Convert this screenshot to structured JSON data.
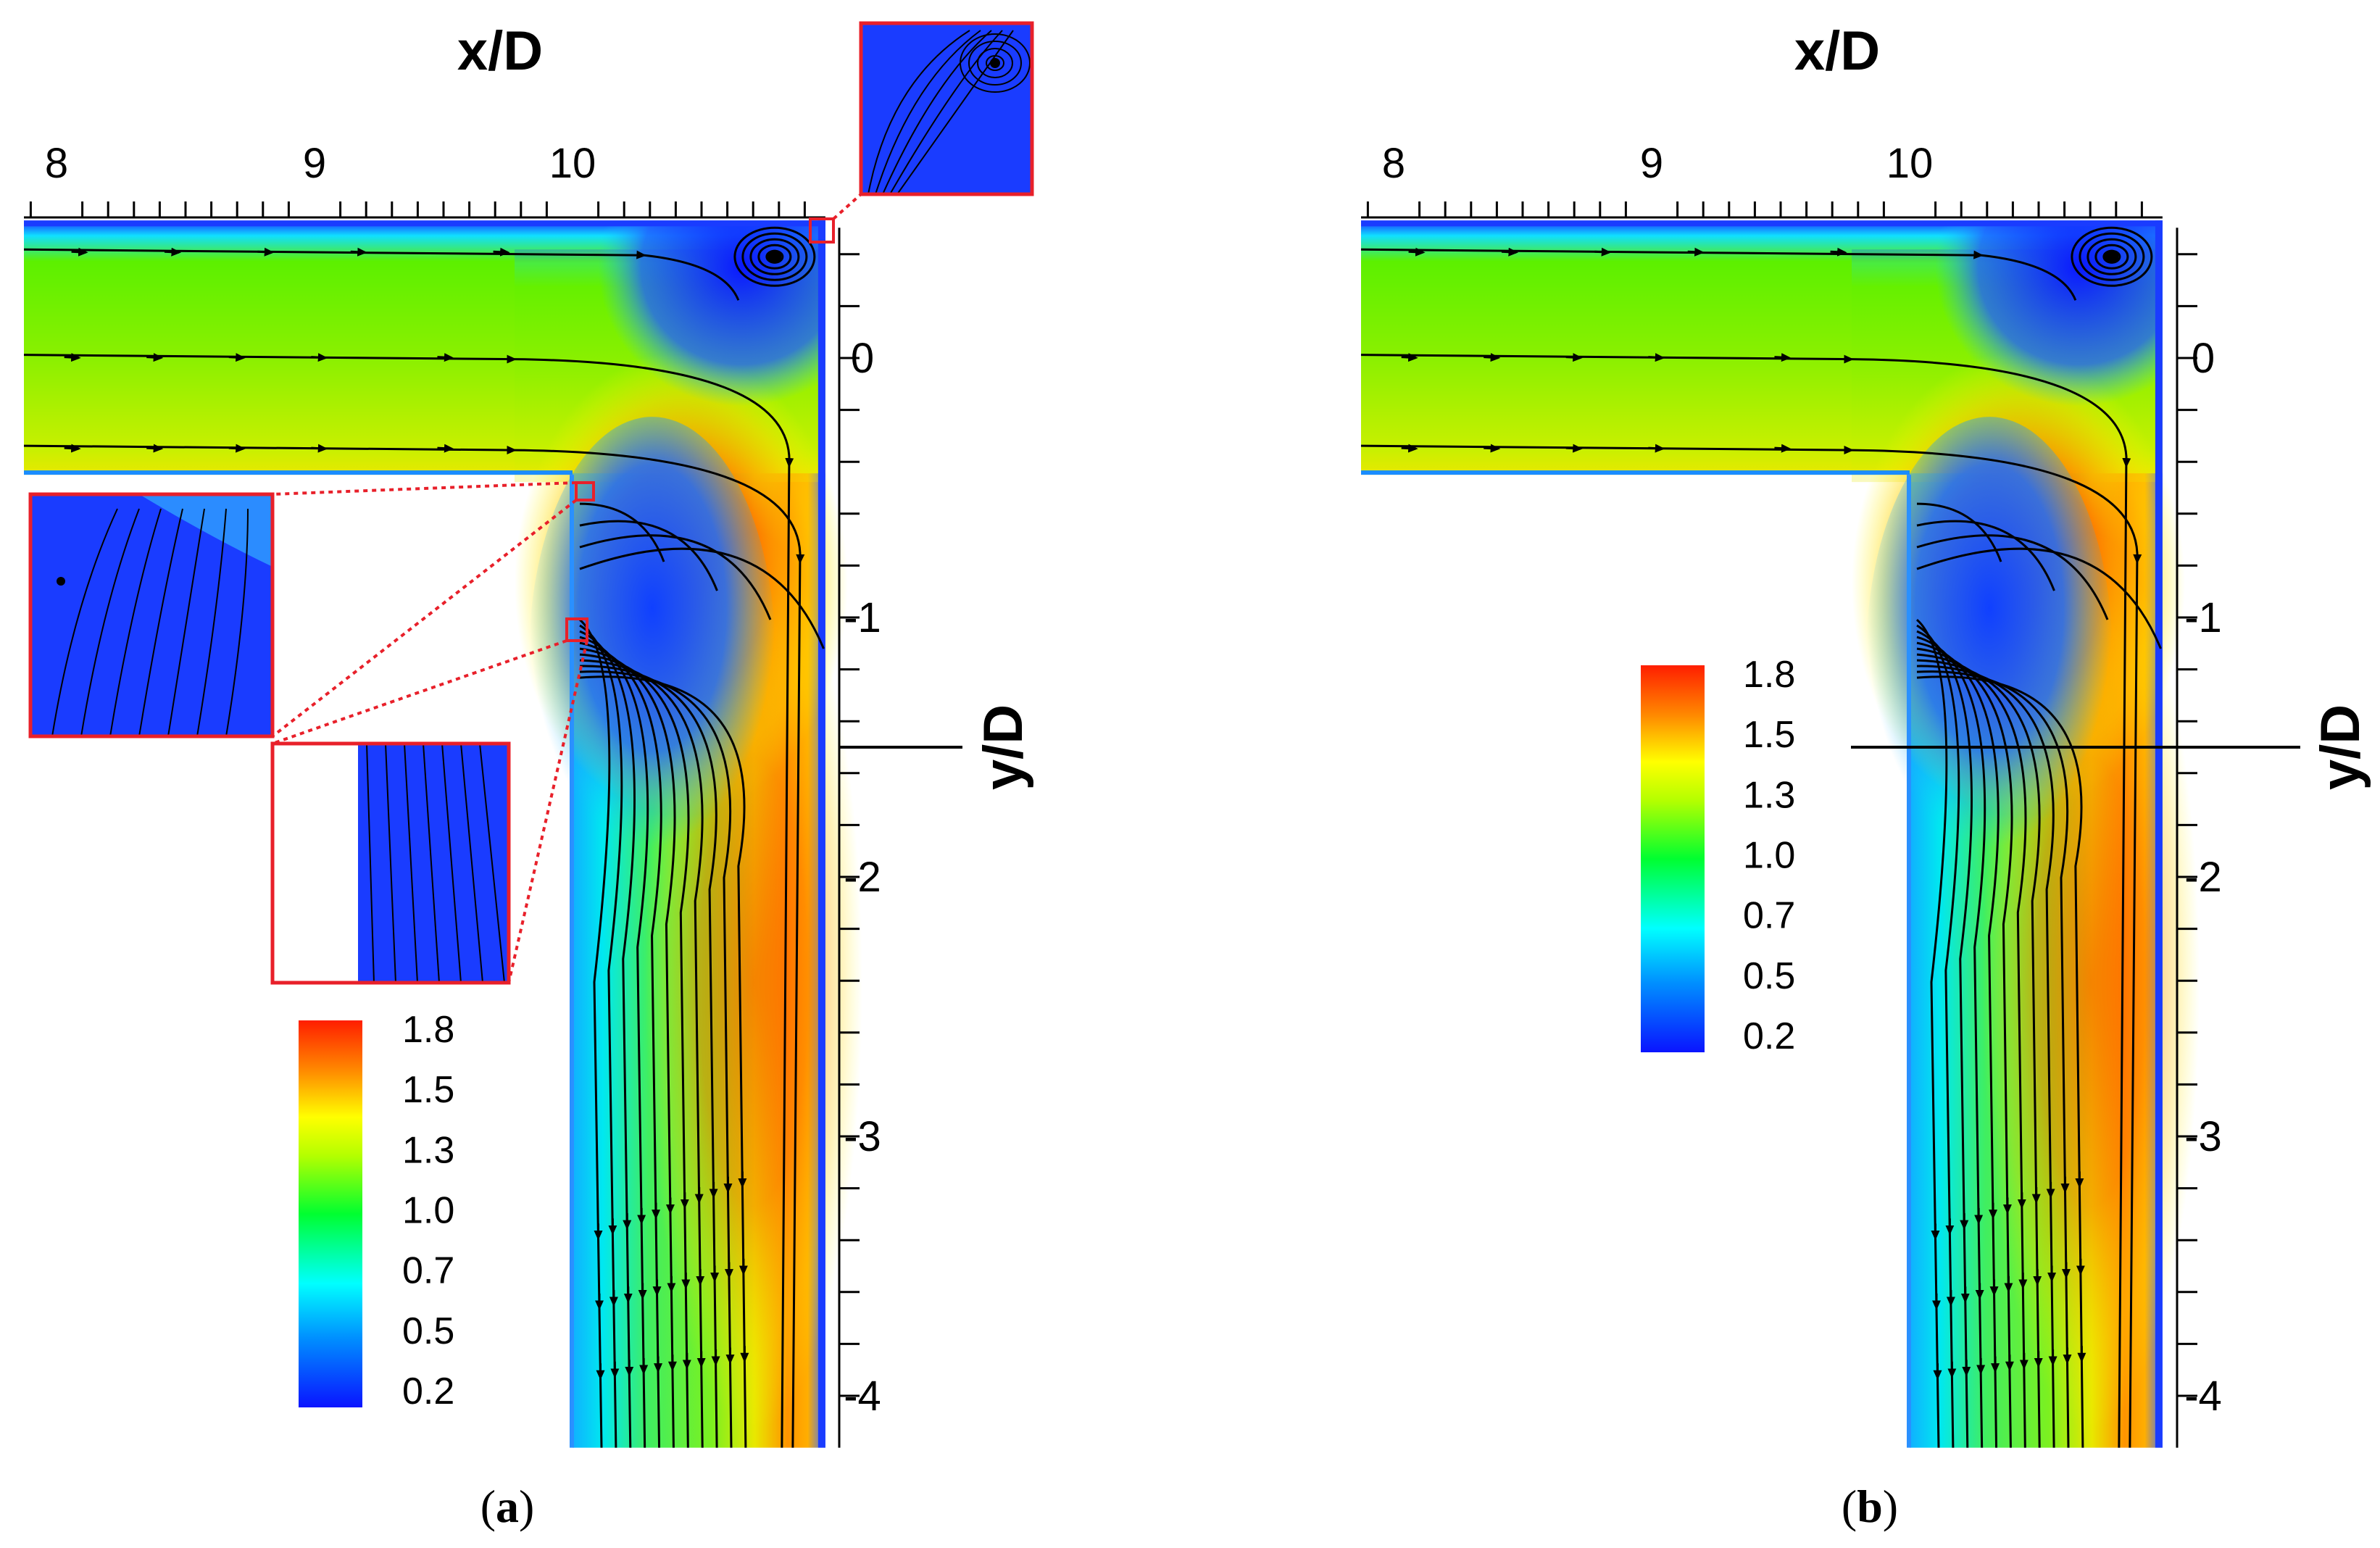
{
  "chart_data": [
    {
      "type": "heatmap",
      "panel_label": "(a)",
      "panel_letter": "a",
      "xlabel": "x/D",
      "ylabel": "y/D",
      "x_ticks": [
        "8",
        "9",
        "10"
      ],
      "y_ticks": [
        "0",
        "-1",
        "-2",
        "-3",
        "-4"
      ],
      "xlim": [
        7.87,
        11.0
      ],
      "ylim": [
        -4.2,
        0.55
      ],
      "colorbar": {
        "labels": [
          "1.8",
          "1.5",
          "1.3",
          "1.0",
          "0.7",
          "0.5",
          "0.2"
        ],
        "range": [
          0.2,
          1.8
        ]
      },
      "geometry": {
        "inner_corner_x": 10.0,
        "inner_corner_y": -0.45,
        "outer_wall_x": 10.98,
        "top_wall_y": 0.53
      },
      "insets": 3,
      "colors": {
        "inset_frame": "#e8202a",
        "streamline": "#000000"
      }
    },
    {
      "type": "heatmap",
      "panel_label": "(b)",
      "panel_letter": "b",
      "xlabel": "x/D",
      "ylabel": "y/D",
      "x_ticks": [
        "8",
        "9",
        "10"
      ],
      "y_ticks": [
        "0",
        "-1",
        "-2",
        "-3",
        "-4"
      ],
      "xlim": [
        7.87,
        11.0
      ],
      "ylim": [
        -4.2,
        0.55
      ],
      "colorbar": {
        "labels": [
          "1.8",
          "1.5",
          "1.3",
          "1.0",
          "0.7",
          "0.5",
          "0.2"
        ],
        "range": [
          0.2,
          1.8
        ]
      },
      "geometry": {
        "inner_corner_x": 10.0,
        "inner_corner_y": -0.45,
        "outer_wall_x": 10.98,
        "top_wall_y": 0.53
      },
      "insets": 0,
      "colors": {
        "streamline": "#000000"
      }
    }
  ]
}
